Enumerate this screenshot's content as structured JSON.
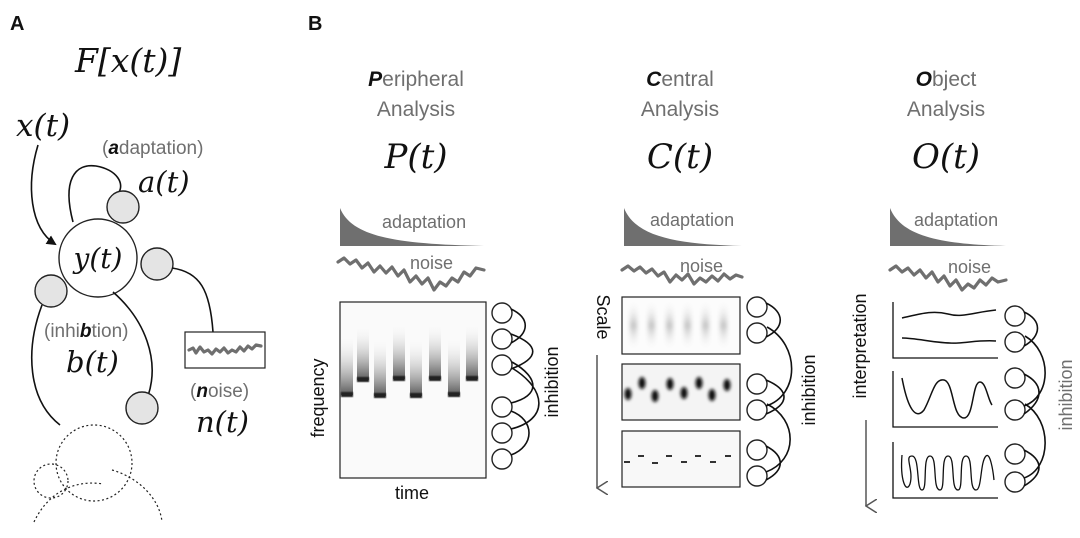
{
  "panel_a": {
    "letter": "A",
    "functional": "F[x(t)]",
    "input": "x(t)",
    "state": "y(t)",
    "adaptation_word": "(adaptation)",
    "adaptation_var": "a(t)",
    "inhibition_word": "(inhibtion)",
    "inhibition_var": "b(t)",
    "noise_word": "(noise)",
    "noise_var": "n(t)"
  },
  "panel_b": {
    "letter": "B",
    "columns": [
      {
        "title_line1": "Peripheral",
        "title_line2": "Analysis",
        "var": "P(t)",
        "adaptation_label": "adaptation",
        "noise_label": "noise",
        "y_axis_label": "frequency",
        "x_axis_label": "time",
        "side_label": "inhibition"
      },
      {
        "title_line1": "Central",
        "title_line2": "Analysis",
        "var": "C(t)",
        "adaptation_label": "adaptation",
        "noise_label": "noise",
        "arrow_label": "Scale",
        "side_label": "inhibition"
      },
      {
        "title_line1": "Object",
        "title_line2": "Analysis",
        "var": "O(t)",
        "adaptation_label": "adaptation",
        "noise_label": "noise",
        "arrow_label": "interpretation",
        "side_label": "inhibition"
      }
    ]
  },
  "colors": {
    "label_grey": "#6f6f6f",
    "node_fill": "#e4e4e4",
    "line": "#111111"
  }
}
